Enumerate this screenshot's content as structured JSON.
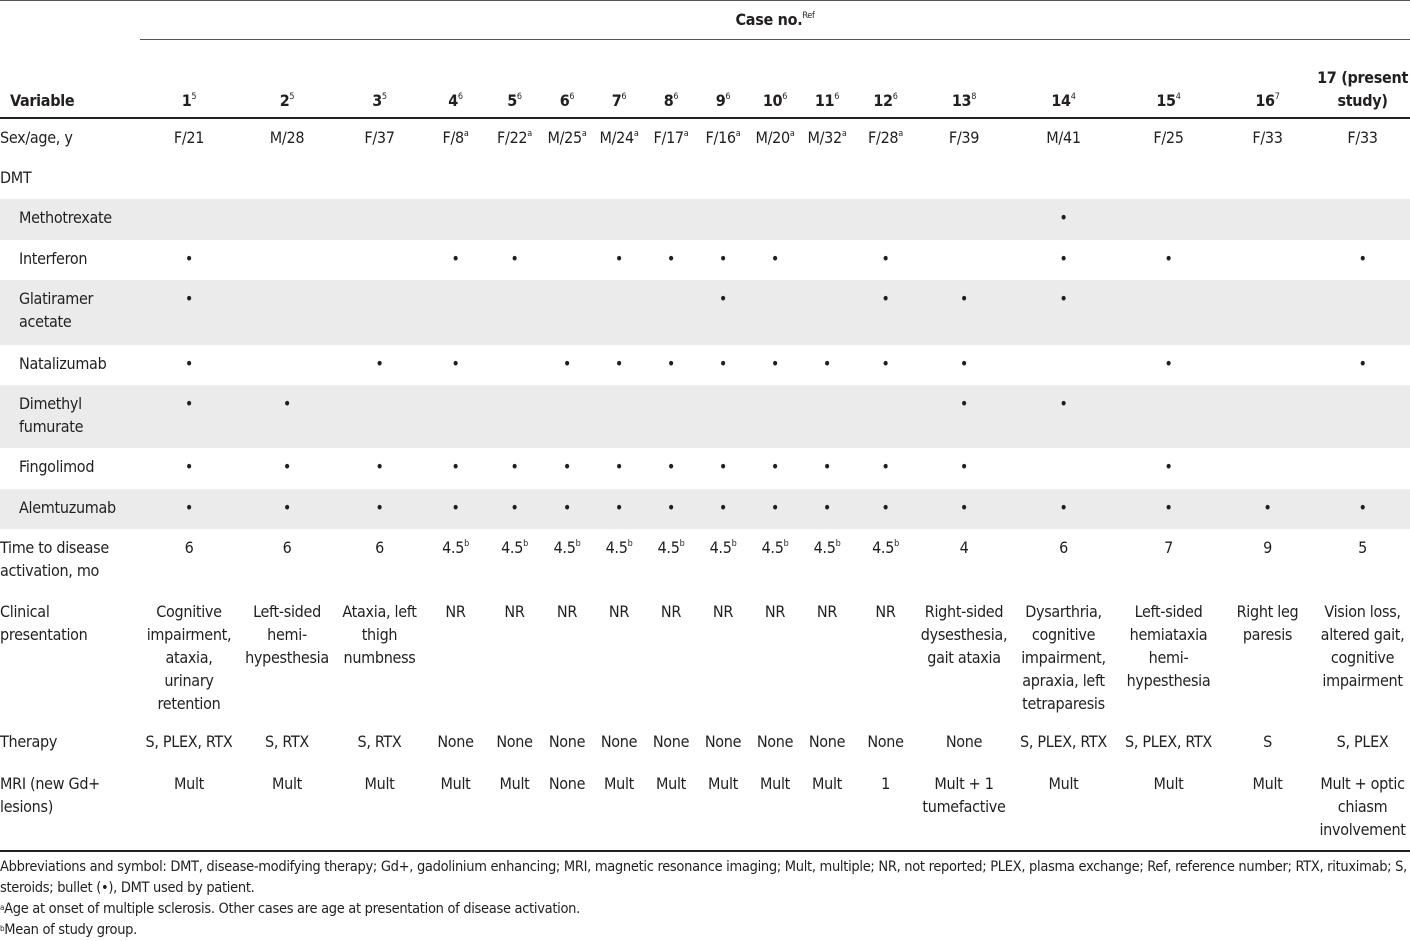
{
  "header": {
    "case_label": "Case no.",
    "case_ref": "Ref",
    "variable_label": "Variable"
  },
  "columns": [
    {
      "num": "1",
      "ref": "5"
    },
    {
      "num": "2",
      "ref": "5"
    },
    {
      "num": "3",
      "ref": "5"
    },
    {
      "num": "4",
      "ref": "6"
    },
    {
      "num": "5",
      "ref": "6"
    },
    {
      "num": "6",
      "ref": "6"
    },
    {
      "num": "7",
      "ref": "6"
    },
    {
      "num": "8",
      "ref": "6"
    },
    {
      "num": "9",
      "ref": "6"
    },
    {
      "num": "10",
      "ref": "6"
    },
    {
      "num": "11",
      "ref": "6"
    },
    {
      "num": "12",
      "ref": "6"
    },
    {
      "num": "13",
      "ref": "8"
    },
    {
      "num": "14",
      "ref": "4"
    },
    {
      "num": "15",
      "ref": "4"
    },
    {
      "num": "16",
      "ref": "7"
    },
    {
      "num": "17 (present study)",
      "ref": ""
    }
  ],
  "rows": [
    {
      "label": "Sex/age, y",
      "cells": [
        [
          "F/21",
          ""
        ],
        [
          "M/28",
          ""
        ],
        [
          "F/37",
          ""
        ],
        [
          "F/8",
          "a"
        ],
        [
          "F/22",
          "a"
        ],
        [
          "M/25",
          "a"
        ],
        [
          "M/24",
          "a"
        ],
        [
          "F/17",
          "a"
        ],
        [
          "F/16",
          "a"
        ],
        [
          "M/20",
          "a"
        ],
        [
          "M/32",
          "a"
        ],
        [
          "F/28",
          "a"
        ],
        [
          "F/39",
          ""
        ],
        [
          "M/41",
          ""
        ],
        [
          "F/25",
          ""
        ],
        [
          "F/33",
          ""
        ],
        [
          "F/33",
          ""
        ]
      ]
    },
    {
      "label": "DMT",
      "cells": []
    },
    {
      "label": "Methotrexate",
      "sub": true,
      "shade": true,
      "cells": [
        [
          "",
          ""
        ],
        [
          "",
          ""
        ],
        [
          "",
          ""
        ],
        [
          "",
          ""
        ],
        [
          "",
          ""
        ],
        [
          "",
          ""
        ],
        [
          "",
          ""
        ],
        [
          "",
          ""
        ],
        [
          "",
          ""
        ],
        [
          "",
          ""
        ],
        [
          "",
          ""
        ],
        [
          "",
          ""
        ],
        [
          "",
          ""
        ],
        [
          "•",
          ""
        ],
        [
          "",
          ""
        ],
        [
          "",
          ""
        ],
        [
          "",
          ""
        ]
      ]
    },
    {
      "label": "Interferon",
      "sub": true,
      "cells": [
        [
          "•",
          ""
        ],
        [
          "",
          ""
        ],
        [
          "",
          ""
        ],
        [
          "•",
          ""
        ],
        [
          "•",
          ""
        ],
        [
          "",
          ""
        ],
        [
          "•",
          ""
        ],
        [
          "•",
          ""
        ],
        [
          "•",
          ""
        ],
        [
          "•",
          ""
        ],
        [
          "",
          ""
        ],
        [
          "•",
          ""
        ],
        [
          "",
          ""
        ],
        [
          "•",
          ""
        ],
        [
          "•",
          ""
        ],
        [
          "",
          ""
        ],
        [
          "•",
          ""
        ]
      ]
    },
    {
      "label": "Glatiramer acetate",
      "sub": true,
      "shade": true,
      "cells": [
        [
          "•",
          ""
        ],
        [
          "",
          ""
        ],
        [
          "",
          ""
        ],
        [
          "",
          ""
        ],
        [
          "",
          ""
        ],
        [
          "",
          ""
        ],
        [
          "",
          ""
        ],
        [
          "",
          ""
        ],
        [
          "•",
          ""
        ],
        [
          "",
          ""
        ],
        [
          "",
          ""
        ],
        [
          "•",
          ""
        ],
        [
          "•",
          ""
        ],
        [
          "•",
          ""
        ],
        [
          "",
          ""
        ],
        [
          "",
          ""
        ],
        [
          "",
          ""
        ]
      ]
    },
    {
      "label": "Natalizumab",
      "sub": true,
      "cells": [
        [
          "•",
          ""
        ],
        [
          "",
          ""
        ],
        [
          "•",
          ""
        ],
        [
          "•",
          ""
        ],
        [
          "",
          ""
        ],
        [
          "•",
          ""
        ],
        [
          "•",
          ""
        ],
        [
          "•",
          ""
        ],
        [
          "•",
          ""
        ],
        [
          "•",
          ""
        ],
        [
          "•",
          ""
        ],
        [
          "•",
          ""
        ],
        [
          "•",
          ""
        ],
        [
          "",
          ""
        ],
        [
          "•",
          ""
        ],
        [
          "",
          ""
        ],
        [
          "•",
          ""
        ]
      ]
    },
    {
      "label": "Dimethyl fumurate",
      "sub": true,
      "shade": true,
      "cells": [
        [
          "•",
          ""
        ],
        [
          "•",
          ""
        ],
        [
          "",
          ""
        ],
        [
          "",
          ""
        ],
        [
          "",
          ""
        ],
        [
          "",
          ""
        ],
        [
          "",
          ""
        ],
        [
          "",
          ""
        ],
        [
          "",
          ""
        ],
        [
          "",
          ""
        ],
        [
          "",
          ""
        ],
        [
          "",
          ""
        ],
        [
          "•",
          ""
        ],
        [
          "•",
          ""
        ],
        [
          "",
          ""
        ],
        [
          "",
          ""
        ],
        [
          "",
          ""
        ]
      ]
    },
    {
      "label": "Fingolimod",
      "sub": true,
      "cells": [
        [
          "•",
          ""
        ],
        [
          "•",
          ""
        ],
        [
          "•",
          ""
        ],
        [
          "•",
          ""
        ],
        [
          "•",
          ""
        ],
        [
          "•",
          ""
        ],
        [
          "•",
          ""
        ],
        [
          "•",
          ""
        ],
        [
          "•",
          ""
        ],
        [
          "•",
          ""
        ],
        [
          "•",
          ""
        ],
        [
          "•",
          ""
        ],
        [
          "•",
          ""
        ],
        [
          "",
          ""
        ],
        [
          "•",
          ""
        ],
        [
          "",
          ""
        ],
        [
          "",
          ""
        ]
      ]
    },
    {
      "label": "Alemtuzumab",
      "sub": true,
      "shade": true,
      "cells": [
        [
          "•",
          ""
        ],
        [
          "•",
          ""
        ],
        [
          "•",
          ""
        ],
        [
          "•",
          ""
        ],
        [
          "•",
          ""
        ],
        [
          "•",
          ""
        ],
        [
          "•",
          ""
        ],
        [
          "•",
          ""
        ],
        [
          "•",
          ""
        ],
        [
          "•",
          ""
        ],
        [
          "•",
          ""
        ],
        [
          "•",
          ""
        ],
        [
          "•",
          ""
        ],
        [
          "•",
          ""
        ],
        [
          "•",
          ""
        ],
        [
          "•",
          ""
        ],
        [
          "•",
          ""
        ]
      ]
    },
    {
      "label": "Time to disease activation, mo",
      "cells": [
        [
          "6",
          ""
        ],
        [
          "6",
          ""
        ],
        [
          "6",
          ""
        ],
        [
          "4.5",
          "b"
        ],
        [
          "4.5",
          "b"
        ],
        [
          "4.5",
          "b"
        ],
        [
          "4.5",
          "b"
        ],
        [
          "4.5",
          "b"
        ],
        [
          "4.5",
          "b"
        ],
        [
          "4.5",
          "b"
        ],
        [
          "4.5",
          "b"
        ],
        [
          "4.5",
          "b"
        ],
        [
          "4",
          ""
        ],
        [
          "6",
          ""
        ],
        [
          "7",
          ""
        ],
        [
          "9",
          ""
        ],
        [
          "5",
          ""
        ]
      ]
    },
    {
      "label": "Clinical presentation",
      "cells": [
        [
          "Cognitive impairment, ataxia, urinary retention",
          ""
        ],
        [
          "Left-sided hemi-hypesthesia",
          ""
        ],
        [
          "Ataxia, left thigh numbness",
          ""
        ],
        [
          "NR",
          ""
        ],
        [
          "NR",
          ""
        ],
        [
          "NR",
          ""
        ],
        [
          "NR",
          ""
        ],
        [
          "NR",
          ""
        ],
        [
          "NR",
          ""
        ],
        [
          "NR",
          ""
        ],
        [
          "NR",
          ""
        ],
        [
          "NR",
          ""
        ],
        [
          "Right-sided dysesthesia, gait ataxia",
          ""
        ],
        [
          "Dysarthria, cognitive impairment, apraxia, left tetraparesis",
          ""
        ],
        [
          "Left-sided hemiataxia hemi-hypesthesia",
          ""
        ],
        [
          "Right leg paresis",
          ""
        ],
        [
          "Vision loss, altered gait, cognitive impairment",
          ""
        ]
      ]
    },
    {
      "label": "Therapy",
      "cells": [
        [
          "S, PLEX, RTX",
          ""
        ],
        [
          "S, RTX",
          ""
        ],
        [
          "S, RTX",
          ""
        ],
        [
          "None",
          ""
        ],
        [
          "None",
          ""
        ],
        [
          "None",
          ""
        ],
        [
          "None",
          ""
        ],
        [
          "None",
          ""
        ],
        [
          "None",
          ""
        ],
        [
          "None",
          ""
        ],
        [
          "None",
          ""
        ],
        [
          "None",
          ""
        ],
        [
          "None",
          ""
        ],
        [
          "S, PLEX, RTX",
          ""
        ],
        [
          "S, PLEX, RTX",
          ""
        ],
        [
          "S",
          ""
        ],
        [
          "S, PLEX",
          ""
        ]
      ]
    },
    {
      "label": "MRI (new Gd+ lesions)",
      "cells": [
        [
          "Mult",
          ""
        ],
        [
          "Mult",
          ""
        ],
        [
          "Mult",
          ""
        ],
        [
          "Mult",
          ""
        ],
        [
          "Mult",
          ""
        ],
        [
          "None",
          ""
        ],
        [
          "Mult",
          ""
        ],
        [
          "Mult",
          ""
        ],
        [
          "Mult",
          ""
        ],
        [
          "Mult",
          ""
        ],
        [
          "Mult",
          ""
        ],
        [
          "1",
          ""
        ],
        [
          "Mult + 1 tumefactive",
          ""
        ],
        [
          "Mult",
          ""
        ],
        [
          "Mult",
          ""
        ],
        [
          "Mult",
          ""
        ],
        [
          "Mult + optic chiasm involvement",
          ""
        ]
      ]
    }
  ],
  "footnotes": {
    "abbrev": "Abbreviations and symbol: DMT, disease-modifying therapy; Gd+, gadolinium enhancing; MRI, magnetic resonance imaging; Mult, multiple; NR, not reported; PLEX, plasma exchange; Ref, reference number; RTX, rituximab; S, steroids; bullet (•), DMT used by patient.",
    "a_mark": "a",
    "a": "Age at onset of multiple sclerosis. Other cases are age at presentation of disease activation.",
    "b_mark": "b",
    "b": "Mean of study group."
  }
}
